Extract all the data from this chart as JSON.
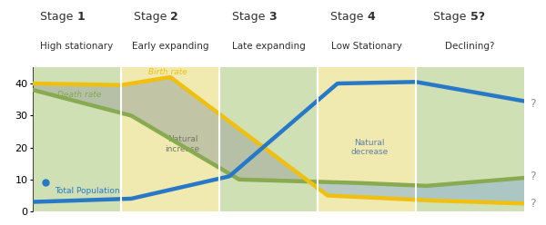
{
  "stages": [
    "Stage 1",
    "Stage 2",
    "Stage 3",
    "Stage 4",
    "Stage 5?"
  ],
  "stage_subtitles": [
    "High stationary",
    "Early expanding",
    "Late expanding",
    "Low Stationary",
    "Declining?"
  ],
  "stage_boundaries": [
    0.0,
    0.18,
    0.38,
    0.58,
    0.78,
    1.0
  ],
  "stage_bg_colors": [
    "#cfe0b5",
    "#f0eab0",
    "#cfe0b5",
    "#f0eab0",
    "#cfe0b5"
  ],
  "ylim": [
    0,
    45
  ],
  "yticks": [
    0,
    10,
    20,
    30,
    40
  ],
  "figsize": [
    6.0,
    2.48
  ],
  "dpi": 100,
  "birth_rate_color": "#f0c010",
  "death_rate_color": "#88aa50",
  "population_color": "#2878c8",
  "natural_increase_fill": "#a8b0a0",
  "natural_decrease_fill": "#98b8cc",
  "birth_rate_label": "Birth rate",
  "death_rate_label": "Death rate",
  "population_label": "Total Population",
  "natural_increase_label": "Natural\nincrease",
  "natural_decrease_label": "Natural\ndecrease",
  "question_mark_color": "#909090",
  "header_color": "#303030",
  "divider_color": "#ffffff"
}
